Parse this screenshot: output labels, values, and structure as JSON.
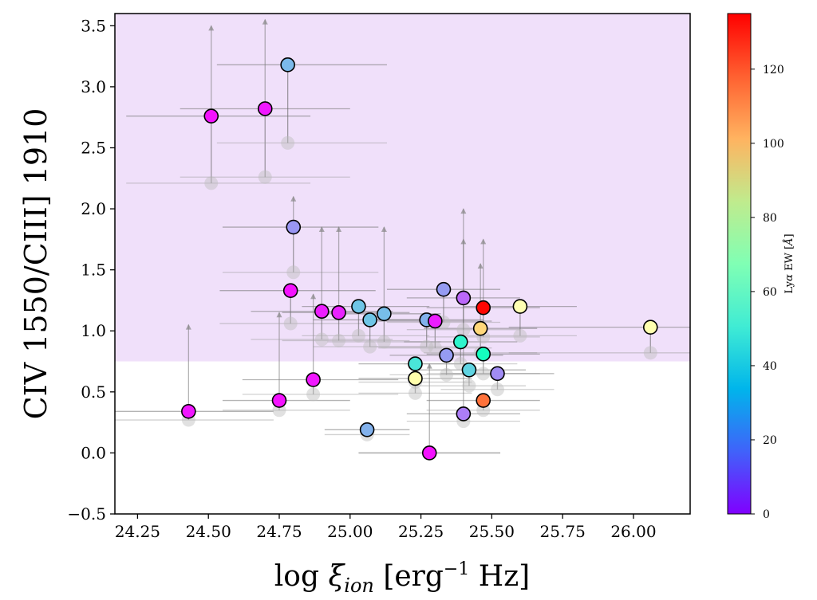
{
  "chart_data": {
    "type": "scatter",
    "ylabel": "CIV 1550/CIII] 1910",
    "xlabel_parts": {
      "base": "log ",
      "xi": "ξ",
      "sub": "ion",
      "unit_pre": " [erg",
      "unit_sup": "−1",
      "unit_post": " Hz]"
    },
    "xlim": [
      24.17,
      26.2
    ],
    "ylim": [
      -0.5,
      3.6
    ],
    "x_ticks": [
      24.25,
      24.5,
      24.75,
      25.0,
      25.25,
      25.5,
      25.75,
      26.0
    ],
    "x_tick_labels": [
      "24.25",
      "24.50",
      "24.75",
      "25.00",
      "25.25",
      "25.50",
      "25.75",
      "26.00"
    ],
    "y_ticks": [
      -0.5,
      0.0,
      0.5,
      1.0,
      1.5,
      2.0,
      2.5,
      3.0,
      3.5
    ],
    "y_tick_labels": [
      "−0.5",
      "0.0",
      "0.5",
      "1.0",
      "1.5",
      "2.0",
      "2.5",
      "3.0",
      "3.5"
    ],
    "shaded_region": {
      "y_min": 0.75,
      "y_max": 3.6,
      "color": "#f0e0fa"
    },
    "colorbar": {
      "label": "Lyα EW [Å]",
      "label_parts": {
        "pre": "Ly",
        "alpha": "α",
        "post": " EW [",
        "ang": "Å",
        "end": "]"
      },
      "range": [
        0,
        135
      ],
      "ticks": [
        0,
        20,
        40,
        60,
        80,
        100,
        120
      ],
      "tick_labels": [
        "0",
        "20",
        "40",
        "60",
        "80",
        "100",
        "120"
      ],
      "colormap": "rainbow"
    },
    "points": [
      {
        "x": 24.43,
        "y": 0.34,
        "ew": 4,
        "y_lo": 0.27,
        "xerr": [
          0.35,
          0.3
        ],
        "upper": 1.05
      },
      {
        "x": 24.51,
        "y": 2.76,
        "ew": 3,
        "y_lo": 2.21,
        "xerr": [
          0.3,
          0.35
        ],
        "upper": 3.5
      },
      {
        "x": 24.7,
        "y": 2.82,
        "ew": 4,
        "y_lo": 2.26,
        "xerr": [
          0.3,
          0.3
        ],
        "upper": 3.55
      },
      {
        "x": 24.75,
        "y": 0.43,
        "ew": 3,
        "y_lo": 0.35,
        "xerr": [
          0.2,
          0.25
        ],
        "upper": 1.15
      },
      {
        "x": 24.78,
        "y": 3.18,
        "ew": 35,
        "y_lo": 2.54,
        "xerr": [
          0.25,
          0.35
        ],
        "upper": null
      },
      {
        "x": 24.8,
        "y": 1.85,
        "ew": 27,
        "y_lo": 1.48,
        "xerr": [
          0.25,
          0.3
        ],
        "upper": 2.1
      },
      {
        "x": 24.79,
        "y": 1.33,
        "ew": 3,
        "y_lo": 1.06,
        "xerr": [
          0.25,
          0.3
        ],
        "upper": null
      },
      {
        "x": 24.87,
        "y": 0.6,
        "ew": 4,
        "y_lo": 0.48,
        "xerr": [
          0.25,
          0.3
        ],
        "upper": 1.3
      },
      {
        "x": 24.9,
        "y": 1.16,
        "ew": 5,
        "y_lo": 0.93,
        "xerr": [
          0.25,
          0.25
        ],
        "upper": 1.85
      },
      {
        "x": 24.96,
        "y": 1.15,
        "ew": 6,
        "y_lo": 0.92,
        "xerr": [
          0.2,
          0.25
        ],
        "upper": 1.85
      },
      {
        "x": 25.03,
        "y": 1.2,
        "ew": 38,
        "y_lo": 0.96,
        "xerr": [
          0.2,
          0.25
        ],
        "upper": null
      },
      {
        "x": 25.07,
        "y": 1.09,
        "ew": 38,
        "y_lo": 0.87,
        "xerr": [
          0.2,
          0.2
        ],
        "upper": null
      },
      {
        "x": 25.06,
        "y": 0.19,
        "ew": 33,
        "y_lo": 0.15,
        "xerr": [
          0.15,
          0.15
        ],
        "upper": null
      },
      {
        "x": 25.12,
        "y": 1.14,
        "ew": 36,
        "y_lo": 0.91,
        "xerr": [
          0.2,
          0.2
        ],
        "upper": 1.85
      },
      {
        "x": 25.23,
        "y": 0.73,
        "ew": 48,
        "y_lo": 0.58,
        "xerr": [
          0.2,
          0.2
        ],
        "upper": null
      },
      {
        "x": 25.23,
        "y": 0.61,
        "ew": 72,
        "y_lo": 0.49,
        "xerr": [
          0.2,
          0.2
        ],
        "upper": null
      },
      {
        "x": 25.27,
        "y": 1.09,
        "ew": 33,
        "y_lo": 0.87,
        "xerr": [
          0.2,
          0.2
        ],
        "upper": null
      },
      {
        "x": 25.28,
        "y": 0.0,
        "ew": 3,
        "y_lo": 0.0,
        "xerr": [
          0.25,
          0.25
        ],
        "upper": 0.73
      },
      {
        "x": 25.3,
        "y": 1.08,
        "ew": 5,
        "y_lo": 0.86,
        "xerr": [
          0.2,
          0.2
        ],
        "upper": null
      },
      {
        "x": 25.33,
        "y": 1.34,
        "ew": 28,
        "y_lo": 1.07,
        "xerr": [
          0.2,
          0.2
        ],
        "upper": null
      },
      {
        "x": 25.34,
        "y": 0.8,
        "ew": 28,
        "y_lo": 0.64,
        "xerr": [
          0.2,
          0.2
        ],
        "upper": null
      },
      {
        "x": 25.39,
        "y": 0.91,
        "ew": 55,
        "y_lo": 0.73,
        "xerr": [
          0.2,
          0.2
        ],
        "upper": null
      },
      {
        "x": 25.4,
        "y": 1.27,
        "ew": 18,
        "y_lo": 1.01,
        "xerr": [
          0.2,
          0.2
        ],
        "upper": 2.0
      },
      {
        "x": 25.4,
        "y": 0.32,
        "ew": 22,
        "y_lo": 0.26,
        "xerr": [
          0.2,
          0.2
        ],
        "upper": 1.75
      },
      {
        "x": 25.42,
        "y": 0.68,
        "ew": 42,
        "y_lo": 0.55,
        "xerr": [
          0.2,
          0.2
        ],
        "upper": null
      },
      {
        "x": 25.46,
        "y": 1.02,
        "ew": 92,
        "y_lo": 0.82,
        "xerr": [
          0.2,
          0.2
        ],
        "upper": 1.55
      },
      {
        "x": 25.47,
        "y": 1.19,
        "ew": 134,
        "y_lo": 0.95,
        "xerr": [
          0.2,
          0.2
        ],
        "upper": 1.75
      },
      {
        "x": 25.47,
        "y": 0.81,
        "ew": 62,
        "y_lo": 0.65,
        "xerr": [
          0.2,
          0.2
        ],
        "upper": null
      },
      {
        "x": 25.47,
        "y": 0.43,
        "ew": 115,
        "y_lo": 0.35,
        "xerr": [
          0.2,
          0.2
        ],
        "upper": null
      },
      {
        "x": 25.52,
        "y": 0.65,
        "ew": 25,
        "y_lo": 0.52,
        "xerr": [
          0.2,
          0.2
        ],
        "upper": null
      },
      {
        "x": 25.6,
        "y": 1.2,
        "ew": 68,
        "y_lo": 0.96,
        "xerr": [
          0.2,
          0.2
        ],
        "upper": null
      },
      {
        "x": 26.06,
        "y": 1.03,
        "ew": 70,
        "y_lo": 0.82,
        "xerr": [
          0.5,
          0.2
        ],
        "upper": null
      }
    ]
  }
}
